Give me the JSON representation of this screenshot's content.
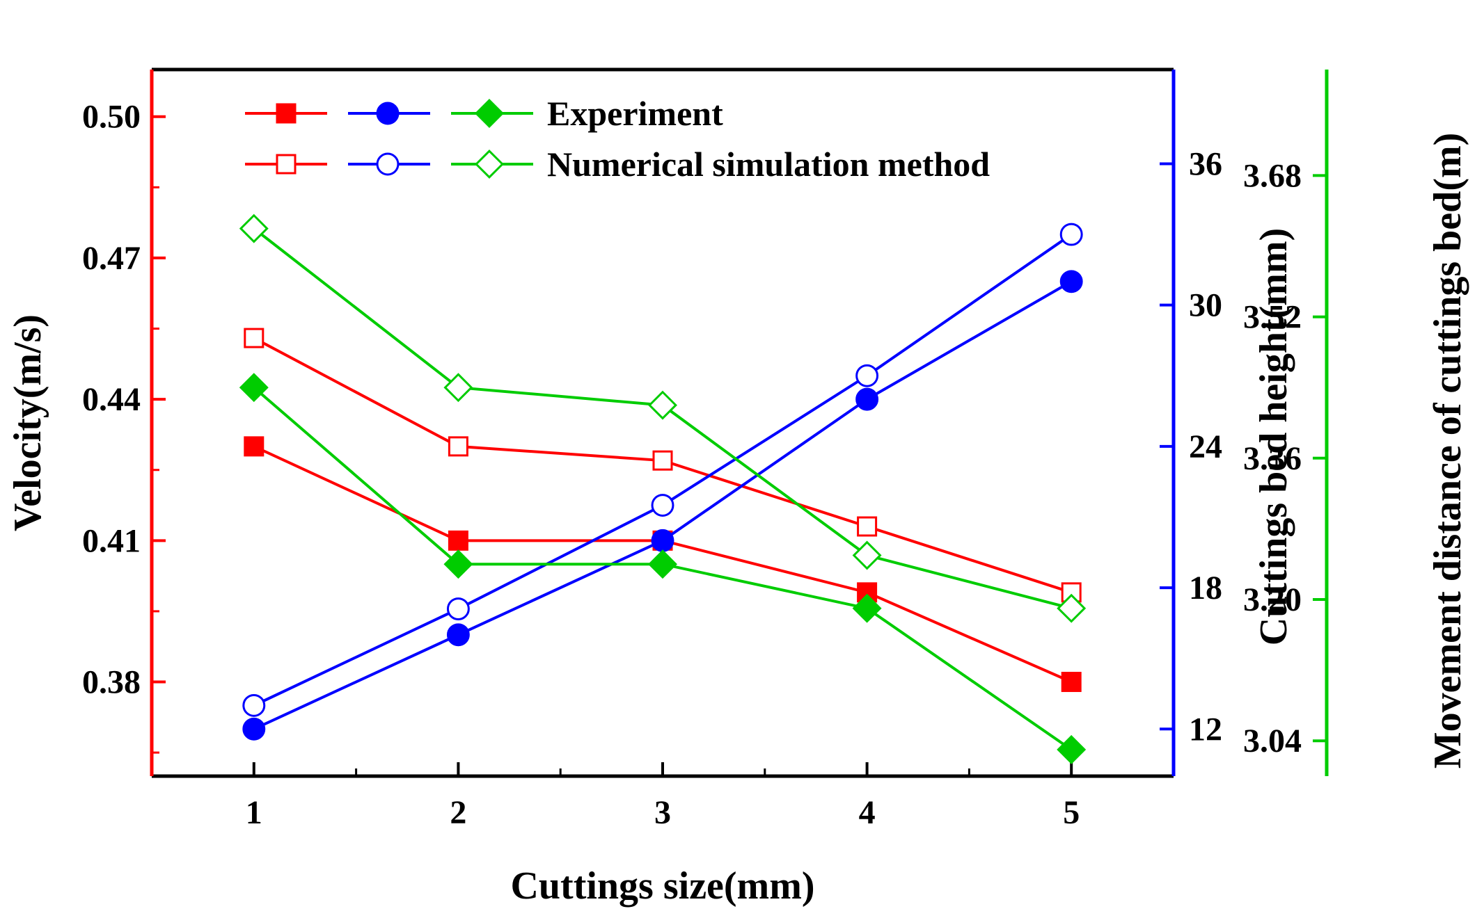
{
  "chart_data": {
    "type": "line",
    "xlabel": "Cuttings size(mm)",
    "x": [
      1,
      2,
      3,
      4,
      5
    ],
    "xlim": [
      0.5,
      5.5
    ],
    "xticks": [
      "1",
      "2",
      "3",
      "4",
      "5"
    ],
    "axes": {
      "left": {
        "label": "Velocity(m/s)",
        "ylim": [
          0.36,
          0.51
        ],
        "ticks": [
          "0.38",
          "0.41",
          "0.44",
          "0.47",
          "0.50"
        ],
        "color": "#ff0000"
      },
      "right1": {
        "label": "Cuttings bed height(mm)",
        "ylim": [
          10,
          40
        ],
        "ticks": [
          "12",
          "18",
          "24",
          "30",
          "36"
        ],
        "color": "#0000ff"
      },
      "right2": {
        "label": "Movement distance of cuttings bed(m)",
        "ylim": [
          3.0,
          3.8
        ],
        "ticks": [
          "3.04",
          "3.20",
          "3.36",
          "3.52",
          "3.68"
        ],
        "color": "#00cc00"
      }
    },
    "legend": {
      "position": "top-left",
      "entries": [
        "Experiment",
        "Numerical simulation method"
      ]
    },
    "series": [
      {
        "name": "Experiment",
        "quantity": "Velocity",
        "axis": "left",
        "color": "#ff0000",
        "marker": "square",
        "filled": true,
        "values": [
          0.43,
          0.41,
          0.41,
          0.399,
          0.38
        ]
      },
      {
        "name": "Numerical simulation method",
        "quantity": "Velocity",
        "axis": "left",
        "color": "#ff0000",
        "marker": "square",
        "filled": false,
        "values": [
          0.453,
          0.43,
          0.427,
          0.413,
          0.399
        ]
      },
      {
        "name": "Experiment",
        "quantity": "Cuttings bed height",
        "axis": "right1",
        "color": "#0000ff",
        "marker": "circle",
        "filled": true,
        "values": [
          12.0,
          16.0,
          20.0,
          26.0,
          31.0
        ]
      },
      {
        "name": "Numerical simulation method",
        "quantity": "Cuttings bed height",
        "axis": "right1",
        "color": "#0000ff",
        "marker": "circle",
        "filled": false,
        "values": [
          13.0,
          17.1,
          21.5,
          27.0,
          33.0
        ]
      },
      {
        "name": "Experiment",
        "quantity": "Movement distance",
        "axis": "right2",
        "color": "#00cc00",
        "marker": "diamond",
        "filled": true,
        "values": [
          3.44,
          3.24,
          3.24,
          3.19,
          3.03
        ]
      },
      {
        "name": "Numerical simulation method",
        "quantity": "Movement distance",
        "axis": "right2",
        "color": "#00cc00",
        "marker": "diamond",
        "filled": false,
        "values": [
          3.62,
          3.44,
          3.42,
          3.25,
          3.19
        ]
      }
    ]
  }
}
